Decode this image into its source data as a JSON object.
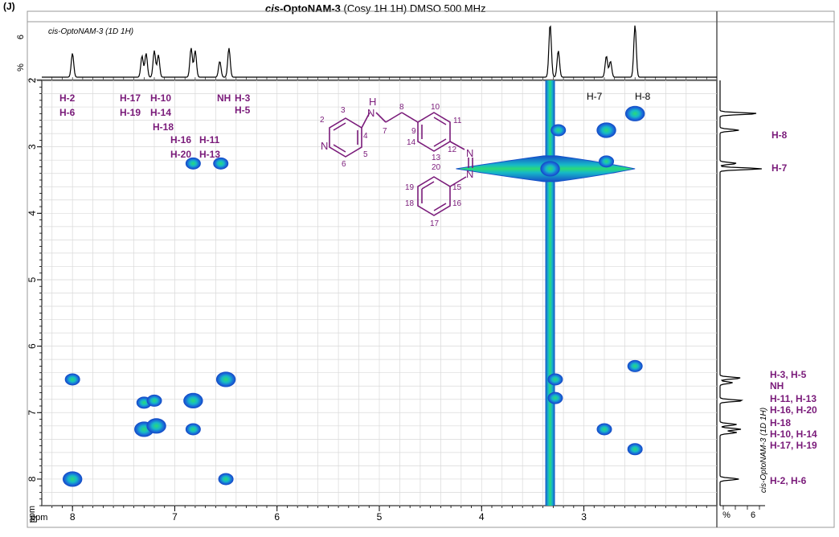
{
  "panel_label": "(J)",
  "title": {
    "prefix_italic": "cis",
    "compound_bold": "-OptoNAM-3",
    "rest": " (Cosy 1H 1H) DMSO 500  MHz"
  },
  "top_projection": {
    "label": "cis-OptoNAM-3  (1D 1H)",
    "y_ticks": [
      "6",
      "%"
    ]
  },
  "side_projection": {
    "label": "cis-OptoNAM-3 (1D 1H)",
    "x_ticks": [
      "%",
      "6"
    ]
  },
  "axes": {
    "x_unit": "ppm",
    "y_unit": "ppm",
    "x_range": [
      8.3,
      1.7
    ],
    "y_range": [
      2.0,
      8.4
    ],
    "x_ticks": [
      "8",
      "7",
      "6",
      "5",
      "4",
      "3"
    ],
    "y_ticks": [
      "2",
      "3",
      "4",
      "5",
      "6",
      "7",
      "8"
    ]
  },
  "colors": {
    "assignment_purple": "#7a1b7a",
    "contour_dark": "#1550c8",
    "contour_mid": "#16b8c8",
    "contour_core": "#2bd97a",
    "grid": "#d9d9d9"
  },
  "chart_data": {
    "type": "heatmap",
    "xlabel": "ppm",
    "ylabel": "ppm",
    "xlim": [
      8.3,
      1.7
    ],
    "ylim": [
      2.0,
      8.4
    ],
    "grid": true,
    "x_ticks": [
      8,
      7,
      6,
      5,
      4,
      3
    ],
    "y_ticks": [
      2,
      3,
      4,
      5,
      6,
      7,
      8
    ],
    "cross_peaks": [
      {
        "x": 8.0,
        "y": 6.5
      },
      {
        "x": 8.0,
        "y": 8.0
      },
      {
        "x": 7.3,
        "y": 6.85
      },
      {
        "x": 7.2,
        "y": 6.82
      },
      {
        "x": 7.3,
        "y": 7.25
      },
      {
        "x": 7.18,
        "y": 7.2
      },
      {
        "x": 6.82,
        "y": 6.82
      },
      {
        "x": 6.82,
        "y": 7.25
      },
      {
        "x": 6.5,
        "y": 6.5
      },
      {
        "x": 6.82,
        "y": 3.25
      },
      {
        "x": 6.55,
        "y": 3.25
      },
      {
        "x": 6.5,
        "y": 8.0
      },
      {
        "x": 3.25,
        "y": 2.75
      },
      {
        "x": 2.78,
        "y": 2.75
      },
      {
        "x": 2.78,
        "y": 3.22
      },
      {
        "x": 2.5,
        "y": 2.5
      },
      {
        "x": 2.5,
        "y": 6.3
      },
      {
        "x": 2.5,
        "y": 7.55
      },
      {
        "x": 2.8,
        "y": 7.25
      },
      {
        "x": 3.33,
        "y": 3.33
      },
      {
        "x": 3.28,
        "y": 6.5
      },
      {
        "x": 3.28,
        "y": 6.78
      }
    ],
    "water_ridge_ppm": 3.33,
    "top_projection_peaks": [
      {
        "x": 8.0,
        "h": 0.45
      },
      {
        "x": 7.32,
        "h": 0.4
      },
      {
        "x": 7.28,
        "h": 0.45
      },
      {
        "x": 7.2,
        "h": 0.5
      },
      {
        "x": 7.16,
        "h": 0.42
      },
      {
        "x": 6.84,
        "h": 0.55
      },
      {
        "x": 6.8,
        "h": 0.5
      },
      {
        "x": 6.56,
        "h": 0.3
      },
      {
        "x": 6.47,
        "h": 0.55
      },
      {
        "x": 3.33,
        "h": 1.0
      },
      {
        "x": 3.25,
        "h": 0.5
      },
      {
        "x": 2.78,
        "h": 0.4
      },
      {
        "x": 2.74,
        "h": 0.3
      },
      {
        "x": 2.5,
        "h": 0.98
      }
    ],
    "side_projection_peaks": [
      {
        "y": 2.5,
        "h": 0.9
      },
      {
        "y": 2.75,
        "h": 0.45
      },
      {
        "y": 3.25,
        "h": 0.4
      },
      {
        "y": 3.33,
        "h": 1.0
      },
      {
        "y": 6.48,
        "h": 0.5
      },
      {
        "y": 6.55,
        "h": 0.3
      },
      {
        "y": 6.82,
        "h": 0.55
      },
      {
        "y": 7.18,
        "h": 0.4
      },
      {
        "y": 7.25,
        "h": 0.5
      },
      {
        "y": 7.3,
        "h": 0.4
      },
      {
        "y": 8.0,
        "h": 0.45
      }
    ]
  },
  "top_assignments": [
    {
      "text": "H-2",
      "dark": false
    },
    {
      "text": "H-6",
      "dark": false
    },
    {
      "text": "H-17",
      "dark": false
    },
    {
      "text": "H-19",
      "dark": false
    },
    {
      "text": "H-10",
      "dark": false
    },
    {
      "text": "H-14",
      "dark": false
    },
    {
      "text": "H-18",
      "dark": false
    },
    {
      "text": "H-16",
      "dark": false
    },
    {
      "text": "H-20",
      "dark": false
    },
    {
      "text": "H-11",
      "dark": false
    },
    {
      "text": "H-13",
      "dark": false
    },
    {
      "text": "NH",
      "dark": false
    },
    {
      "text": "H-3",
      "dark": false
    },
    {
      "text": "H-5",
      "dark": false
    },
    {
      "text": "H-7",
      "dark": true
    },
    {
      "text": "H-8",
      "dark": true
    }
  ],
  "side_assignments": [
    "H-8",
    "H-7",
    "H-3, H-5",
    "NH",
    "H-11, H-13",
    "H-16, H-20",
    "H-18",
    "H-10, H-14",
    "H-17, H-19",
    "H-2, H-6"
  ],
  "structure": {
    "atom_N_ring": "N",
    "atom_N_amine": "N",
    "atom_H_amine": "H",
    "azo_N1": "N",
    "azo_N2": "N",
    "numbers": [
      "2",
      "3",
      "4",
      "5",
      "6",
      "7",
      "8",
      "9",
      "10",
      "11",
      "12",
      "13",
      "14",
      "15",
      "16",
      "17",
      "18",
      "19",
      "20"
    ]
  }
}
